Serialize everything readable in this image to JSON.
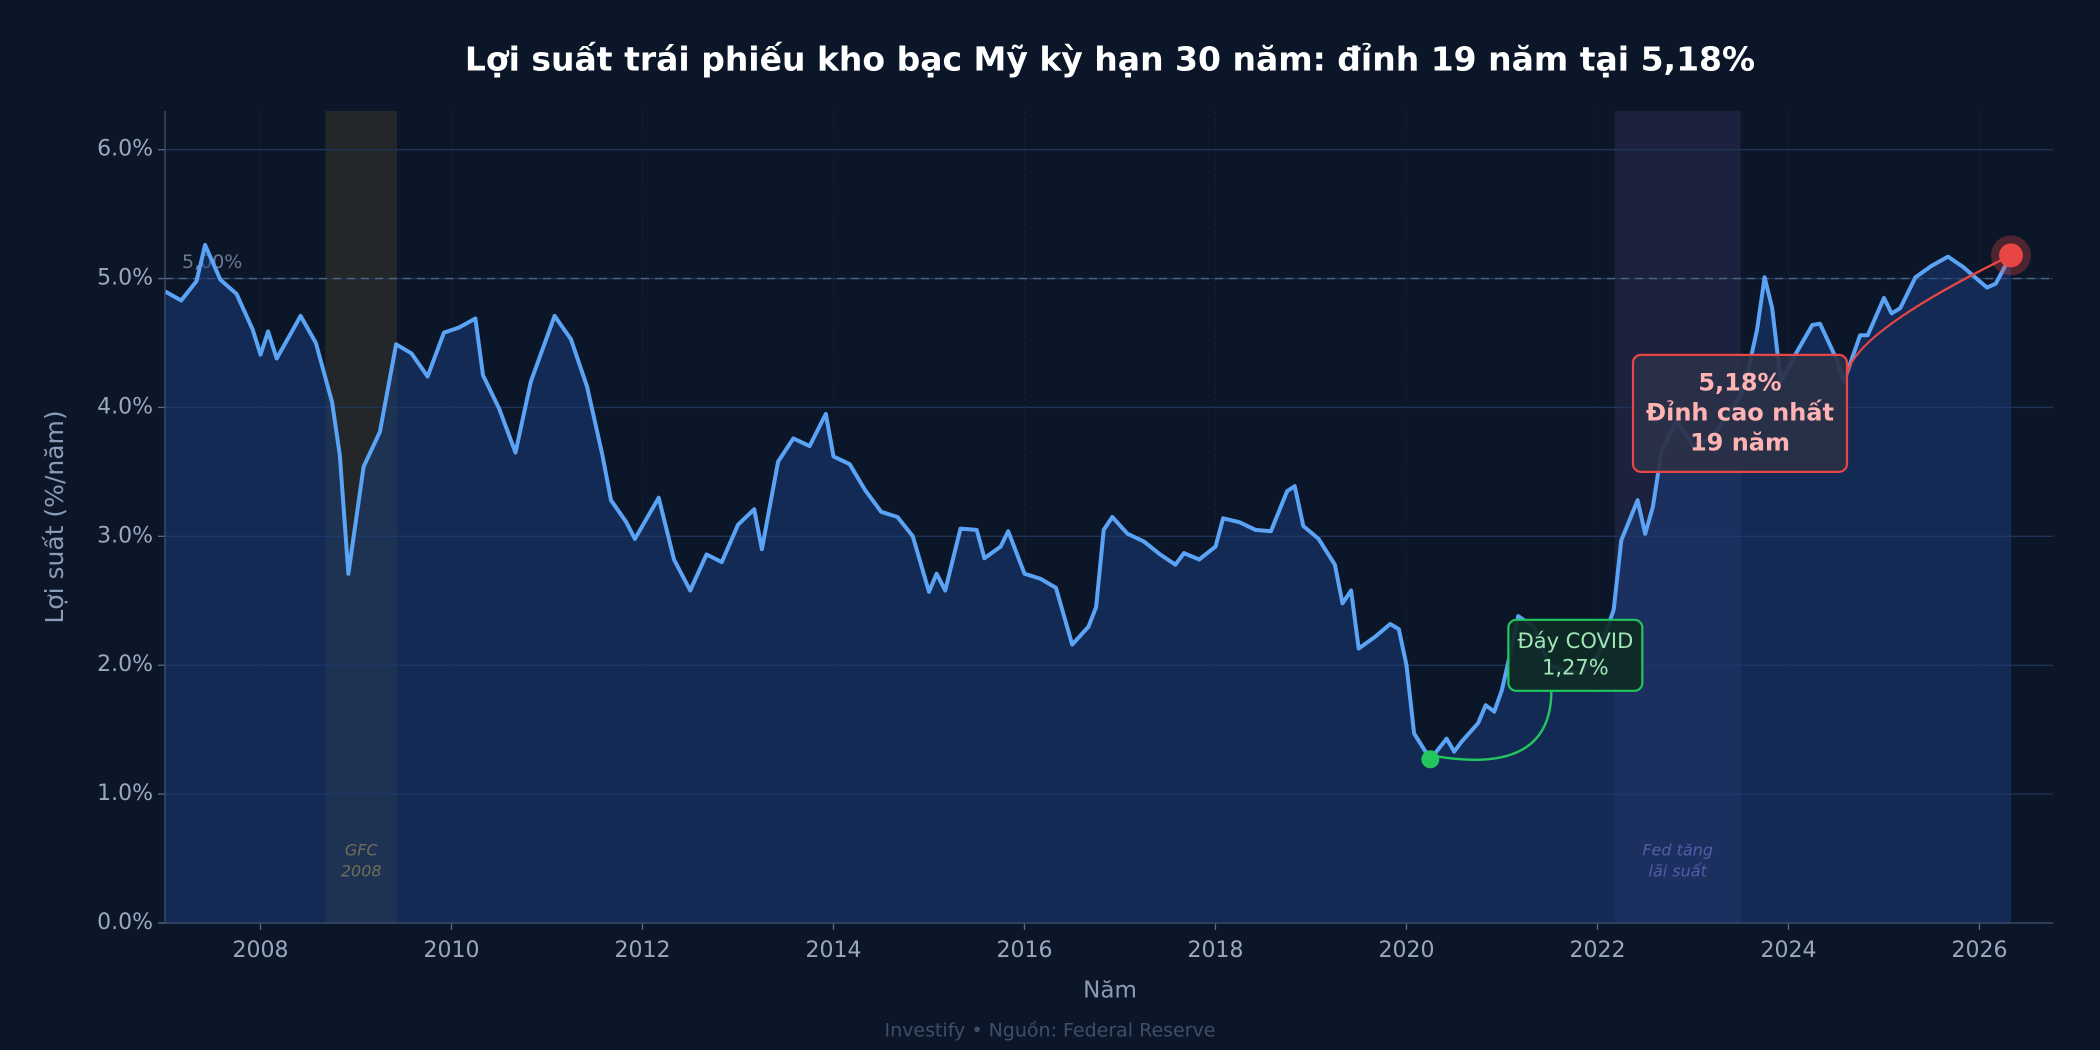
{
  "chart_data": {
    "type": "line",
    "title": "Lợi suất trái phiếu kho bạc Mỹ kỳ hạn 30 năm: đỉnh 19 năm tại 5,18%",
    "xlabel": "Năm",
    "ylabel": "Lợi suất (%/năm)",
    "footer": "Investify  •  Nguồn: Federal Reserve",
    "color": "#5ba3f5",
    "xlim": [
      2007,
      2026.77
    ],
    "ylim": [
      0,
      6.3
    ],
    "xticks": [
      2008,
      2010,
      2012,
      2014,
      2016,
      2018,
      2020,
      2022,
      2024,
      2026
    ],
    "yticks": [
      {
        "value": 0,
        "label": "0.0%"
      },
      {
        "value": 1,
        "label": "1.0%"
      },
      {
        "value": 2,
        "label": "2.0%"
      },
      {
        "value": 3,
        "label": "3.0%"
      },
      {
        "value": 4,
        "label": "4.0%"
      },
      {
        "value": 5,
        "label": "5.0%"
      },
      {
        "value": 6,
        "label": "6.0%"
      }
    ],
    "grid": true,
    "x": [
      2007.0,
      2007.17,
      2007.33,
      2007.42,
      2007.58,
      2007.75,
      2007.92,
      2008.0,
      2008.08,
      2008.17,
      2008.33,
      2008.42,
      2008.58,
      2008.75,
      2008.83,
      2008.92,
      2009.08,
      2009.25,
      2009.42,
      2009.58,
      2009.75,
      2009.92,
      2010.08,
      2010.25,
      2010.33,
      2010.5,
      2010.67,
      2010.83,
      2011.08,
      2011.25,
      2011.42,
      2011.58,
      2011.67,
      2011.83,
      2011.92,
      2012.17,
      2012.33,
      2012.5,
      2012.67,
      2012.83,
      2013.0,
      2013.17,
      2013.25,
      2013.42,
      2013.58,
      2013.75,
      2013.92,
      2014.0,
      2014.17,
      2014.33,
      2014.5,
      2014.67,
      2014.83,
      2015.0,
      2015.08,
      2015.17,
      2015.33,
      2015.5,
      2015.58,
      2015.75,
      2015.83,
      2016.0,
      2016.17,
      2016.33,
      2016.5,
      2016.67,
      2016.75,
      2016.83,
      2016.92,
      2017.08,
      2017.25,
      2017.42,
      2017.58,
      2017.67,
      2017.83,
      2018.0,
      2018.08,
      2018.25,
      2018.42,
      2018.58,
      2018.75,
      2018.83,
      2018.92,
      2019.08,
      2019.25,
      2019.33,
      2019.42,
      2019.5,
      2019.67,
      2019.83,
      2019.92,
      2020.0,
      2020.08,
      2020.25,
      2020.42,
      2020.5,
      2020.58,
      2020.75,
      2020.83,
      2020.92,
      2021.0,
      2021.08,
      2021.17,
      2021.33,
      2021.5,
      2021.67,
      2021.83,
      2022.0,
      2022.17,
      2022.25,
      2022.42,
      2022.5,
      2022.58,
      2022.67,
      2022.83,
      2023.0,
      2023.17,
      2023.33,
      2023.5,
      2023.58,
      2023.67,
      2023.75,
      2023.83,
      2023.92,
      2024.08,
      2024.25,
      2024.33,
      2024.5,
      2024.58,
      2024.75,
      2024.83,
      2025.0,
      2025.08,
      2025.17,
      2025.33,
      2025.5,
      2025.67,
      2025.83,
      2026.0,
      2026.08,
      2026.17,
      2026.33
    ],
    "values": [
      4.9,
      4.83,
      4.98,
      5.26,
      4.99,
      4.88,
      4.6,
      4.41,
      4.59,
      4.38,
      4.59,
      4.71,
      4.5,
      4.04,
      3.63,
      2.71,
      3.54,
      3.81,
      4.49,
      4.42,
      4.24,
      4.58,
      4.62,
      4.69,
      4.25,
      3.99,
      3.65,
      4.2,
      4.71,
      4.53,
      4.16,
      3.63,
      3.28,
      3.11,
      2.98,
      3.3,
      2.82,
      2.58,
      2.86,
      2.8,
      3.09,
      3.21,
      2.9,
      3.58,
      3.76,
      3.7,
      3.95,
      3.62,
      3.56,
      3.36,
      3.19,
      3.15,
      3.0,
      2.57,
      2.71,
      2.58,
      3.06,
      3.05,
      2.83,
      2.92,
      3.04,
      2.71,
      2.67,
      2.6,
      2.16,
      2.3,
      2.45,
      3.05,
      3.15,
      3.02,
      2.96,
      2.86,
      2.78,
      2.87,
      2.82,
      2.92,
      3.14,
      3.11,
      3.05,
      3.04,
      3.35,
      3.39,
      3.08,
      2.98,
      2.78,
      2.48,
      2.58,
      2.13,
      2.22,
      2.32,
      2.28,
      2.0,
      1.47,
      1.27,
      1.43,
      1.33,
      1.41,
      1.55,
      1.69,
      1.64,
      1.81,
      2.07,
      2.38,
      2.3,
      2.0,
      1.95,
      1.94,
      2.07,
      2.43,
      2.97,
      3.28,
      3.02,
      3.23,
      3.66,
      3.9,
      3.7,
      3.75,
      3.9,
      4.1,
      4.3,
      4.6,
      5.01,
      4.77,
      4.2,
      4.42,
      4.64,
      4.65,
      4.38,
      4.2,
      4.56,
      4.56,
      4.85,
      4.73,
      4.77,
      5.01,
      5.1,
      5.17,
      5.09,
      4.98,
      4.93,
      4.96,
      5.18
    ],
    "reference_line": {
      "value": 5.0,
      "label": "5,00%"
    },
    "regions": [
      {
        "start": 2008.68,
        "end": 2009.43,
        "lines": [
          "GFC",
          "2008"
        ],
        "color": "#d4a830"
      },
      {
        "start": 2022.18,
        "end": 2023.5,
        "lines": [
          "Fed tăng",
          "lãi suất"
        ],
        "color": "#9b7fe0"
      }
    ],
    "annotations": [
      {
        "x": 2020.25,
        "y": 1.27,
        "lines": [
          "Đáy COVID",
          "1,27%"
        ],
        "color": "#22c55e"
      },
      {
        "x": 2026.33,
        "y": 5.18,
        "lines": [
          "5,18%",
          "Đỉnh cao nhất",
          "19 năm"
        ],
        "color": "#e84545"
      }
    ]
  }
}
